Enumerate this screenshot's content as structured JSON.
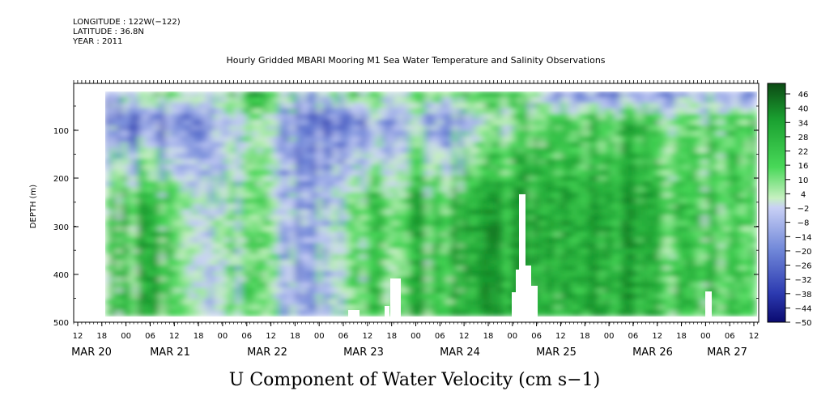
{
  "meta": {
    "longitude": "LONGITUDE : 122W(−122)",
    "latitude": "LATITUDE : 36.8N",
    "year": "YEAR : 2011"
  },
  "chart_data": {
    "type": "heatmap",
    "title": "Hourly Gridded MBARI Mooring M1 Sea Water Temperature and Salinity Observations",
    "xlabel": "U Component of Water Velocity (cm s−1)",
    "ylabel": "DEPTH (m)",
    "ylim": [
      500,
      0
    ],
    "y_ticks": [
      "100",
      "200",
      "300",
      "400",
      "500"
    ],
    "x_hour_ticks": [
      "12",
      "18",
      "00",
      "06",
      "12",
      "18",
      "00",
      "06",
      "12",
      "18",
      "00",
      "06",
      "12",
      "18",
      "00",
      "06",
      "12",
      "18",
      "00",
      "06",
      "12",
      "18",
      "00",
      "06",
      "12",
      "18",
      "00",
      "06",
      "12"
    ],
    "x_date_labels": [
      "MAR 20",
      "MAR 21",
      "MAR 22",
      "MAR 23",
      "MAR 24",
      "MAR 25",
      "MAR 26",
      "MAR 27"
    ],
    "colorbar_ticks": [
      "46",
      "40",
      "34",
      "28",
      "22",
      "16",
      "10",
      "4",
      "−2",
      "−8",
      "−14",
      "−20",
      "−26",
      "−32",
      "−38",
      "−44",
      "−50"
    ],
    "colorbar_range": [
      -50,
      50
    ],
    "colors": {
      "strong_negative": "#1a1a90",
      "negative": "#6f86d8",
      "near_zero_neg": "#c8d0f5",
      "near_zero_pos": "#c6f0c0",
      "positive": "#3ed24a",
      "strong_positive": "#0c5c1a"
    },
    "segments": [
      {
        "day": "MAR 20-21",
        "surface": -6,
        "upper": -14,
        "deep": 14
      },
      {
        "day": "MAR 21",
        "surface": 8,
        "upper": -20,
        "deep": 18
      },
      {
        "day": "MAR 21-22",
        "surface": -4,
        "upper": -18,
        "deep": -8
      },
      {
        "day": "MAR 22",
        "surface": 24,
        "upper": 4,
        "deep": 12
      },
      {
        "day": "MAR 22-23",
        "surface": -10,
        "upper": -20,
        "deep": -14
      },
      {
        "day": "MAR 23",
        "surface": 12,
        "upper": -16,
        "deep": 10
      },
      {
        "day": "MAR 23-24",
        "surface": 6,
        "upper": -6,
        "deep": 14
      },
      {
        "day": "MAR 24",
        "surface": 10,
        "upper": -12,
        "deep": 20
      },
      {
        "day": "MAR 24-25",
        "surface": 18,
        "upper": 4,
        "deep": 24
      },
      {
        "day": "MAR 25",
        "surface": -8,
        "upper": 14,
        "deep": 22
      },
      {
        "day": "MAR 25-26",
        "surface": -14,
        "upper": 16,
        "deep": 24
      },
      {
        "day": "MAR 26",
        "surface": -10,
        "upper": 12,
        "deep": 18
      },
      {
        "day": "MAR 26-27",
        "surface": -6,
        "upper": 10,
        "deep": 16
      },
      {
        "day": "MAR 27",
        "surface": -12,
        "upper": 16,
        "deep": 14
      }
    ]
  }
}
